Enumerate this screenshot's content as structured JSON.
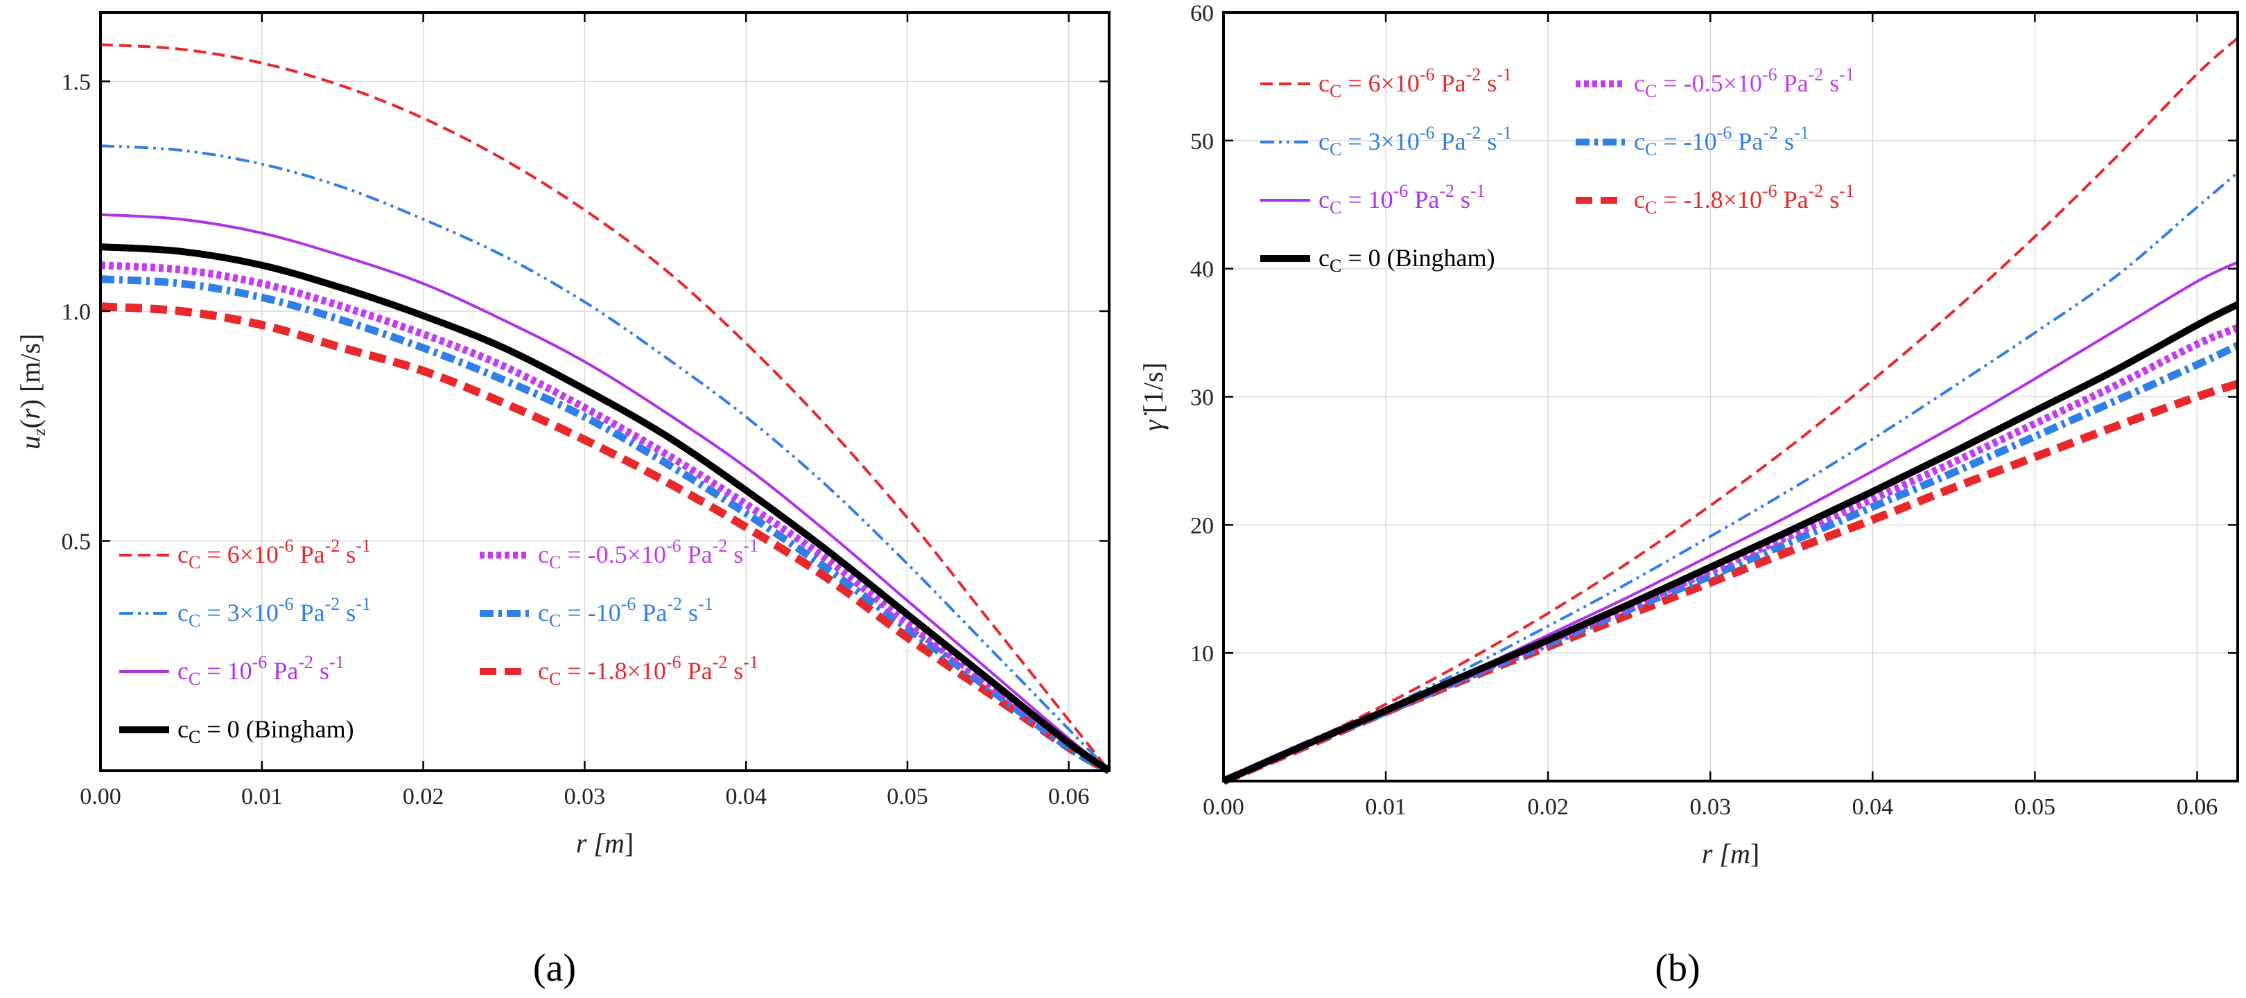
{
  "panel_labels": [
    "(a)",
    "(b)"
  ],
  "legend_entries": [
    {
      "id": "c6",
      "color": "#e8282b",
      "dash": "18,9",
      "width": 4,
      "symbol": "c",
      "sub": "C",
      "eq": " = 6×10",
      "sup": "-6",
      "unit": " Pa",
      "unit_sup": "-2",
      "tail": " s",
      "tail_sup": "-1"
    },
    {
      "id": "c3",
      "color": "#2f7fe6",
      "dash": "20,7,4,7,4,7",
      "width": 4,
      "symbol": "c",
      "sub": "C",
      "eq": " = 3×10",
      "sup": "-6",
      "unit": " Pa",
      "unit_sup": "-2",
      "tail": " s",
      "tail_sup": "-1"
    },
    {
      "id": "c1",
      "color": "#b032e6",
      "dash": "",
      "width": 4,
      "symbol": "c",
      "sub": "C",
      "eq": " = 10",
      "sup": "-6",
      "unit": " Pa",
      "unit_sup": "-2",
      "tail": " s",
      "tail_sup": "-1"
    },
    {
      "id": "c0",
      "color": "#000000",
      "dash": "",
      "width": 10,
      "symbol": "c",
      "sub": "C",
      "eq": " = 0 (Bingham)",
      "sup": "",
      "unit": "",
      "unit_sup": "",
      "tail": "",
      "tail_sup": ""
    },
    {
      "id": "cm05",
      "color": "#c43cf0",
      "dash": "7,5",
      "width": 11,
      "symbol": "c",
      "sub": "C",
      "eq": " = -0.5×10",
      "sup": "-6",
      "unit": " Pa",
      "unit_sup": "-2",
      "tail": " s",
      "tail_sup": "-1"
    },
    {
      "id": "cm1",
      "color": "#2f7fe6",
      "dash": "20,7,5,7",
      "width": 11,
      "symbol": "c",
      "sub": "C",
      "eq": " = -10",
      "sup": "-6",
      "unit": " Pa",
      "unit_sup": "-2",
      "tail": " s",
      "tail_sup": "-1"
    },
    {
      "id": "cm18",
      "color": "#e8282b",
      "dash": "24,12",
      "width": 12,
      "symbol": "c",
      "sub": "C",
      "eq": " = -1.8×10",
      "sup": "-6",
      "unit": " Pa",
      "unit_sup": "-2",
      "tail": " s",
      "tail_sup": "-1"
    }
  ],
  "chart_data": [
    {
      "type": "line",
      "panel": "(a)",
      "xlabel": "r [m]",
      "ylabel": "u_z(r) [m/s]",
      "xlim": [
        0,
        0.0625
      ],
      "ylim": [
        0,
        1.65
      ],
      "xticks": [
        0.0,
        0.01,
        0.02,
        0.03,
        0.04,
        0.05,
        0.06
      ],
      "xtick_labels": [
        "0.00",
        "0.01",
        "0.02",
        "0.03",
        "0.04",
        "0.05",
        "0.06"
      ],
      "yticks": [
        0.5,
        1.0,
        1.5
      ],
      "ytick_labels": [
        "0.5",
        "1.0",
        "1.5"
      ],
      "grid": true,
      "legend_position": "lower-left",
      "series": [
        {
          "id": "c6",
          "x": [
            0,
            0.005,
            0.01,
            0.015,
            0.02,
            0.025,
            0.03,
            0.035,
            0.04,
            0.045,
            0.05,
            0.055,
            0.06,
            0.0625
          ],
          "values": [
            1.58,
            1.57,
            1.54,
            1.49,
            1.42,
            1.33,
            1.22,
            1.09,
            0.93,
            0.75,
            0.55,
            0.33,
            0.11,
            0.0
          ]
        },
        {
          "id": "c3",
          "x": [
            0,
            0.005,
            0.01,
            0.015,
            0.02,
            0.025,
            0.03,
            0.035,
            0.04,
            0.045,
            0.05,
            0.055,
            0.06,
            0.0625
          ],
          "values": [
            1.36,
            1.35,
            1.32,
            1.27,
            1.2,
            1.12,
            1.02,
            0.9,
            0.77,
            0.62,
            0.45,
            0.27,
            0.09,
            0.0
          ]
        },
        {
          "id": "c1",
          "x": [
            0,
            0.005,
            0.01,
            0.015,
            0.02,
            0.025,
            0.03,
            0.035,
            0.04,
            0.045,
            0.05,
            0.055,
            0.06,
            0.0625
          ],
          "values": [
            1.21,
            1.2,
            1.17,
            1.12,
            1.06,
            0.98,
            0.89,
            0.78,
            0.66,
            0.52,
            0.37,
            0.22,
            0.07,
            0.0
          ]
        },
        {
          "id": "c0",
          "x": [
            0,
            0.005,
            0.01,
            0.015,
            0.02,
            0.025,
            0.03,
            0.035,
            0.04,
            0.045,
            0.05,
            0.055,
            0.06,
            0.0625
          ],
          "values": [
            1.14,
            1.13,
            1.1,
            1.05,
            0.99,
            0.92,
            0.83,
            0.73,
            0.61,
            0.48,
            0.34,
            0.2,
            0.06,
            0.0
          ]
        },
        {
          "id": "cm05",
          "x": [
            0,
            0.005,
            0.01,
            0.015,
            0.02,
            0.025,
            0.03,
            0.035,
            0.04,
            0.045,
            0.05,
            0.055,
            0.06,
            0.0625
          ],
          "values": [
            1.1,
            1.09,
            1.06,
            1.01,
            0.95,
            0.88,
            0.79,
            0.69,
            0.58,
            0.46,
            0.32,
            0.19,
            0.06,
            0.0
          ]
        },
        {
          "id": "cm1",
          "x": [
            0,
            0.005,
            0.01,
            0.015,
            0.02,
            0.025,
            0.03,
            0.035,
            0.04,
            0.045,
            0.05,
            0.055,
            0.06,
            0.0625
          ],
          "values": [
            1.07,
            1.06,
            1.03,
            0.98,
            0.92,
            0.85,
            0.77,
            0.67,
            0.56,
            0.44,
            0.31,
            0.18,
            0.05,
            0.0
          ]
        },
        {
          "id": "cm18",
          "x": [
            0,
            0.005,
            0.01,
            0.015,
            0.02,
            0.025,
            0.03,
            0.035,
            0.04,
            0.045,
            0.05,
            0.055,
            0.06,
            0.0625
          ],
          "values": [
            1.01,
            1.0,
            0.97,
            0.92,
            0.87,
            0.8,
            0.72,
            0.63,
            0.53,
            0.42,
            0.29,
            0.17,
            0.05,
            0.0
          ]
        }
      ]
    },
    {
      "type": "line",
      "panel": "(b)",
      "xlabel": "r [m]",
      "ylabel": "γ̇ [1/s]",
      "xlim": [
        0,
        0.0625
      ],
      "ylim": [
        0,
        60
      ],
      "xticks": [
        0.0,
        0.01,
        0.02,
        0.03,
        0.04,
        0.05,
        0.06
      ],
      "xtick_labels": [
        "0.00",
        "0.01",
        "0.02",
        "0.03",
        "0.04",
        "0.05",
        "0.06"
      ],
      "yticks": [
        10,
        20,
        30,
        40,
        50,
        60
      ],
      "ytick_labels": [
        "10",
        "20",
        "30",
        "40",
        "50",
        "60"
      ],
      "grid": true,
      "legend_position": "top-left",
      "series": [
        {
          "id": "c6",
          "x": [
            0,
            0.005,
            0.01,
            0.015,
            0.02,
            0.025,
            0.03,
            0.035,
            0.04,
            0.045,
            0.05,
            0.055,
            0.06,
            0.0625
          ],
          "values": [
            0,
            2.9,
            6.0,
            9.4,
            13.1,
            17.1,
            21.5,
            26.2,
            31.3,
            36.7,
            42.5,
            48.7,
            55.2,
            58.0
          ]
        },
        {
          "id": "c3",
          "x": [
            0,
            0.005,
            0.01,
            0.015,
            0.02,
            0.025,
            0.03,
            0.035,
            0.04,
            0.045,
            0.05,
            0.055,
            0.06,
            0.0625
          ],
          "values": [
            0,
            2.8,
            5.7,
            8.8,
            12.1,
            15.5,
            19.1,
            22.8,
            26.7,
            30.8,
            35.0,
            39.4,
            44.8,
            47.5
          ]
        },
        {
          "id": "c1",
          "x": [
            0,
            0.005,
            0.01,
            0.015,
            0.02,
            0.025,
            0.03,
            0.035,
            0.04,
            0.045,
            0.05,
            0.055,
            0.06,
            0.0625
          ],
          "values": [
            0,
            2.8,
            5.6,
            8.4,
            11.4,
            14.4,
            17.6,
            20.8,
            24.2,
            27.7,
            31.4,
            35.2,
            39.0,
            40.5
          ]
        },
        {
          "id": "c0",
          "x": [
            0,
            0.005,
            0.01,
            0.015,
            0.02,
            0.025,
            0.03,
            0.035,
            0.04,
            0.045,
            0.05,
            0.055,
            0.06,
            0.0625
          ],
          "values": [
            0,
            2.8,
            5.5,
            8.3,
            11.0,
            13.8,
            16.7,
            19.6,
            22.6,
            25.7,
            28.9,
            32.1,
            35.6,
            37.2
          ]
        },
        {
          "id": "cm05",
          "x": [
            0,
            0.005,
            0.01,
            0.015,
            0.02,
            0.025,
            0.03,
            0.035,
            0.04,
            0.045,
            0.05,
            0.055,
            0.06,
            0.0625
          ],
          "values": [
            0,
            2.8,
            5.5,
            8.2,
            10.9,
            13.6,
            16.4,
            19.2,
            22.0,
            24.9,
            27.9,
            30.9,
            34.1,
            35.4
          ]
        },
        {
          "id": "cm1",
          "x": [
            0,
            0.005,
            0.01,
            0.015,
            0.02,
            0.025,
            0.03,
            0.035,
            0.04,
            0.045,
            0.05,
            0.055,
            0.06,
            0.0625
          ],
          "values": [
            0,
            2.8,
            5.4,
            8.1,
            10.7,
            13.4,
            16.0,
            18.7,
            21.4,
            24.1,
            26.9,
            29.7,
            32.5,
            34.0
          ]
        },
        {
          "id": "cm18",
          "x": [
            0,
            0.005,
            0.01,
            0.015,
            0.02,
            0.025,
            0.03,
            0.035,
            0.04,
            0.045,
            0.05,
            0.055,
            0.06,
            0.0625
          ],
          "values": [
            0,
            2.7,
            5.4,
            8.0,
            10.5,
            13.0,
            15.5,
            18.0,
            20.4,
            22.9,
            25.3,
            27.7,
            30.0,
            31.0
          ]
        }
      ]
    }
  ]
}
